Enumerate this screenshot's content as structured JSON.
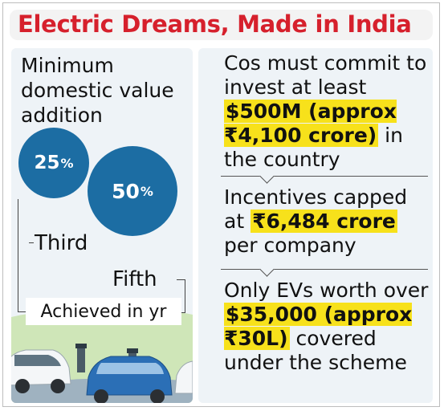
{
  "title": "Electric Dreams, Made in India",
  "left": {
    "heading": "Minimum\ndomestic value\naddition",
    "circle_small": {
      "value": "25",
      "unit": "%"
    },
    "circle_large": {
      "value": "50",
      "unit": "%"
    },
    "label_third": "Third",
    "label_fifth": "Fifth",
    "label_achieved": "Achieved in yr"
  },
  "right": {
    "block1": {
      "pre": "Cos must commit to invest at least ",
      "highlight": "$500M (approx ₹4,100 crore)",
      "post": " in the country"
    },
    "block2": {
      "pre": "Incentives capped at ",
      "highlight": "₹6,484 crore",
      "post": " per company"
    },
    "block3": {
      "pre": "Only EVs worth over ",
      "highlight": "$35,000 (approx ₹30L)",
      "post": " covered under the scheme"
    }
  },
  "colors": {
    "title": "#d6202c",
    "circle": "#1c6da3",
    "panel": "#eef3f7",
    "highlight": "#f7e11b"
  }
}
